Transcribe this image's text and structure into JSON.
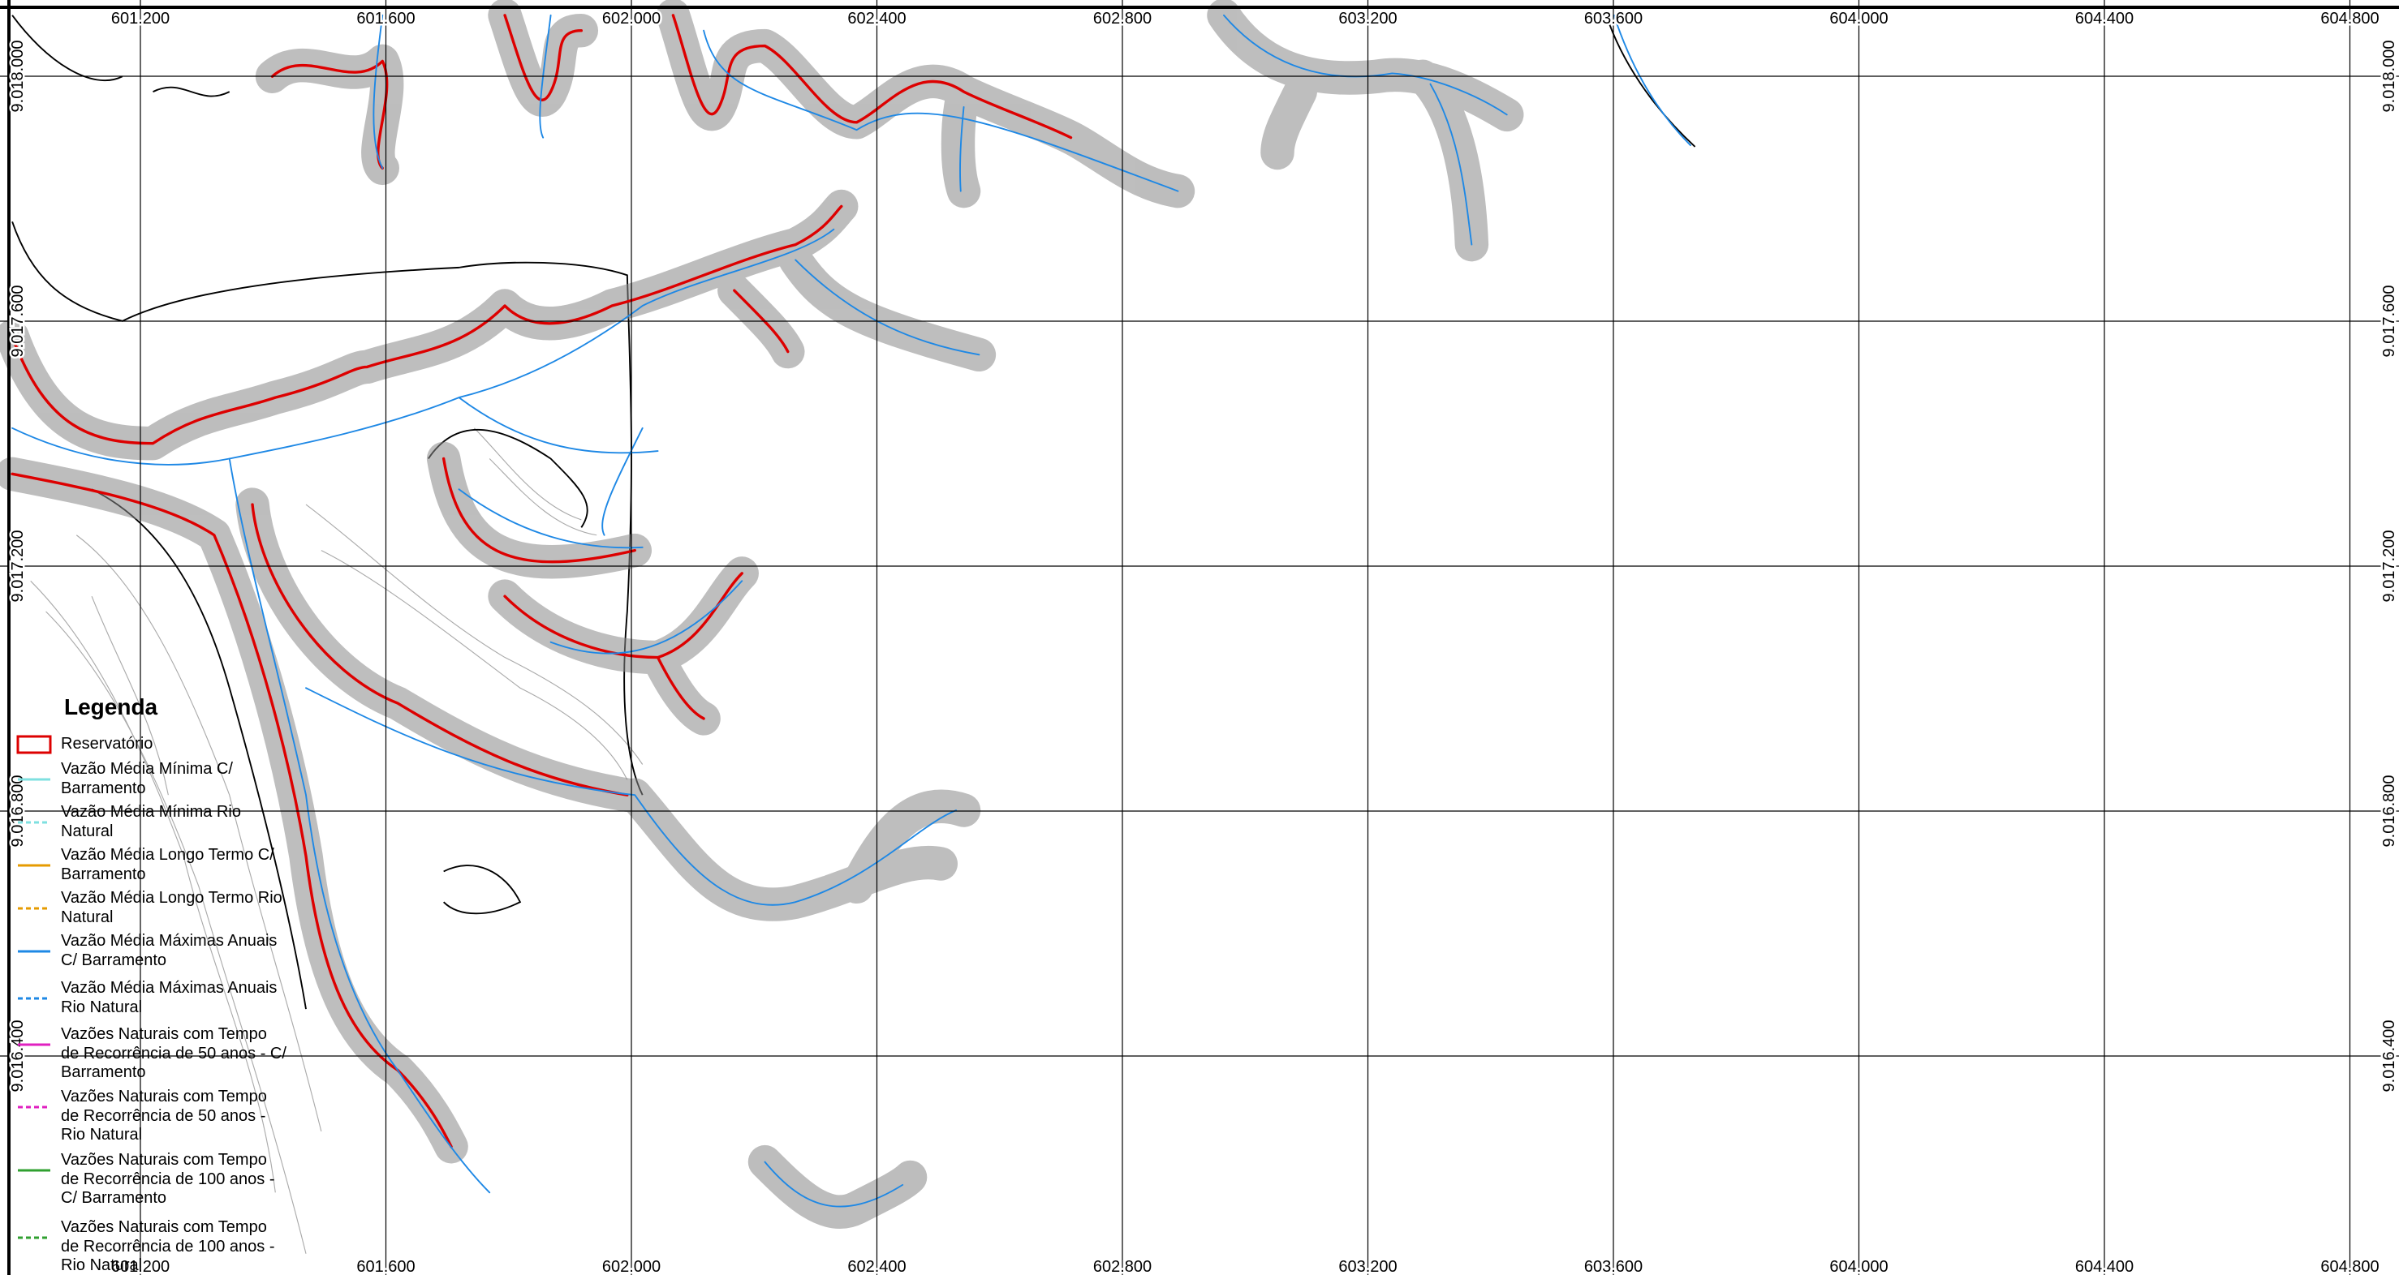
{
  "map": {
    "x_labels": [
      "601.200",
      "601.600",
      "602.000",
      "602.400",
      "602.800",
      "603.200",
      "603.600",
      "604.000",
      "604.400",
      "604.800"
    ],
    "y_labels": [
      "9.018.000",
      "9.017.600",
      "9.017.200",
      "9.016.800",
      "9.016.400"
    ],
    "legend": {
      "title": "Legenda",
      "items": [
        "Reservatório",
        "Vazão Média Mínima C/ Barramento",
        "Vazão Média Mínima Rio Natural",
        "Vazão Média Longo Termo C/ Barramento",
        "Vazão Média Longo Termo Rio Natural",
        "Vazão Média Máximas Anuais C/ Barramento",
        "Vazão Média Máximas Anuais Rio Natural",
        "Vazões Naturais com Tempo de Recorrência de 50 anos - C/ Barramento",
        "Vazões Naturais com Tempo de Recorrência de 50 anos - Rio Natural",
        "Vazões Naturais com Tempo de Recorrência de 100 anos - C/ Barramento",
        "Vazões Naturais com Tempo de Recorrência de 100 anos - Rio Natural"
      ]
    }
  }
}
